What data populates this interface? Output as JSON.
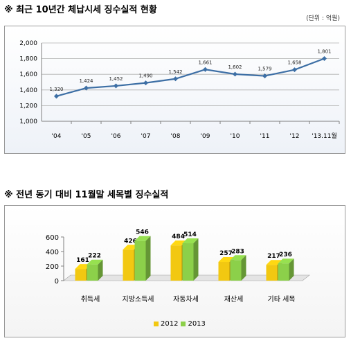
{
  "headings": {
    "line_title": "※ 최근 10년간 체납시세 징수실적 현황",
    "unit": "(단위 : 억원)",
    "bar_title": "※ 전년 동기 대비 11월말 세목별 징수실적"
  },
  "chart_data": [
    {
      "type": "line",
      "x": [
        "'04",
        "'05",
        "'06",
        "'07",
        "'08",
        "'09",
        "'10",
        "'11",
        "'12",
        "'13.11월"
      ],
      "series": [
        {
          "values": [
            1320,
            1424,
            1452,
            1490,
            1542,
            1661,
            1602,
            1579,
            1658,
            1801
          ]
        }
      ],
      "data_labels": [
        "1,320",
        "1,424",
        "1,452",
        "1,490",
        "1,542",
        "1,661",
        "1,602",
        "1,579",
        "1,658",
        "1,801"
      ],
      "yticks": [
        "1,000",
        "1,200",
        "1,400",
        "1,600",
        "1,800",
        "2,000"
      ],
      "ylim": [
        1000,
        2000
      ],
      "grid": true,
      "color": "#3d6fa5"
    },
    {
      "type": "bar",
      "categories": [
        "취득세",
        "지방소득세",
        "자동차세",
        "재산세",
        "기타 세목"
      ],
      "series": [
        {
          "name": "2012",
          "values": [
            161,
            426,
            484,
            257,
            217
          ],
          "color": "#f2c811"
        },
        {
          "name": "2013",
          "values": [
            222,
            546,
            514,
            283,
            236
          ],
          "color": "#8cd04a"
        }
      ],
      "yticks": [
        "0",
        "200",
        "400",
        "600"
      ],
      "ylim": [
        0,
        600
      ],
      "legend": "bottom"
    }
  ]
}
